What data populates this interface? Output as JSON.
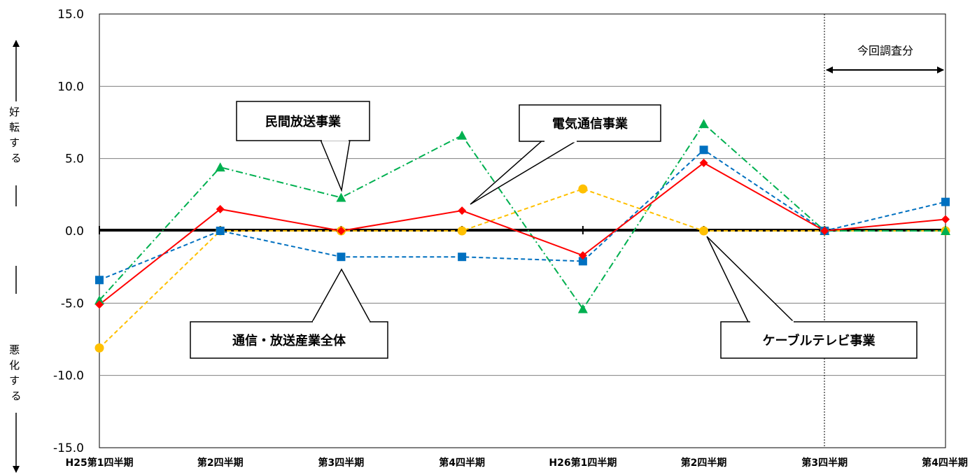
{
  "chart_data": {
    "type": "line",
    "title": "",
    "xlabel": "",
    "ylabel": "",
    "ylim": [
      -15,
      15
    ],
    "yticks": [
      "15.0",
      "10.0",
      "5.0",
      "0.0",
      "-5.0",
      "-10.0",
      "-15.0"
    ],
    "ytick_values": [
      15,
      10,
      5,
      0,
      -5,
      -10,
      -15
    ],
    "categories": [
      "H25第1四半期",
      "第2四半期",
      "第3四半期",
      "第4四半期",
      "H26第1四半期",
      "第2四半期",
      "第3四半期",
      "第4四半期"
    ],
    "grid": true,
    "series": [
      {
        "name": "通信・放送産業全体",
        "color": "#0070C0",
        "dash": "dashed",
        "marker": "square",
        "values": [
          -3.4,
          0.0,
          -1.8,
          -1.8,
          -2.1,
          5.6,
          0.0,
          2.0
        ]
      },
      {
        "name": "電気通信事業",
        "color": "#FF0000",
        "dash": "solid",
        "marker": "diamond",
        "values": [
          -5.1,
          1.5,
          0.0,
          1.4,
          -1.7,
          4.7,
          0.0,
          0.8
        ]
      },
      {
        "name": "民間放送事業",
        "color": "#00B050",
        "dash": "dashdot",
        "marker": "triangle",
        "values": [
          -4.8,
          4.4,
          2.3,
          6.6,
          -5.4,
          7.4,
          0.0,
          0.0
        ]
      },
      {
        "name": "ケーブルテレビ事業",
        "color": "#FFC000",
        "dash": "dashed",
        "marker": "circle",
        "values": [
          -8.1,
          0.0,
          0.0,
          0.0,
          2.9,
          0.0,
          0.0,
          0.0
        ]
      }
    ],
    "annotations": {
      "improve": "好転する",
      "worsen": "悪化する",
      "current_period": "今回調査分"
    }
  }
}
